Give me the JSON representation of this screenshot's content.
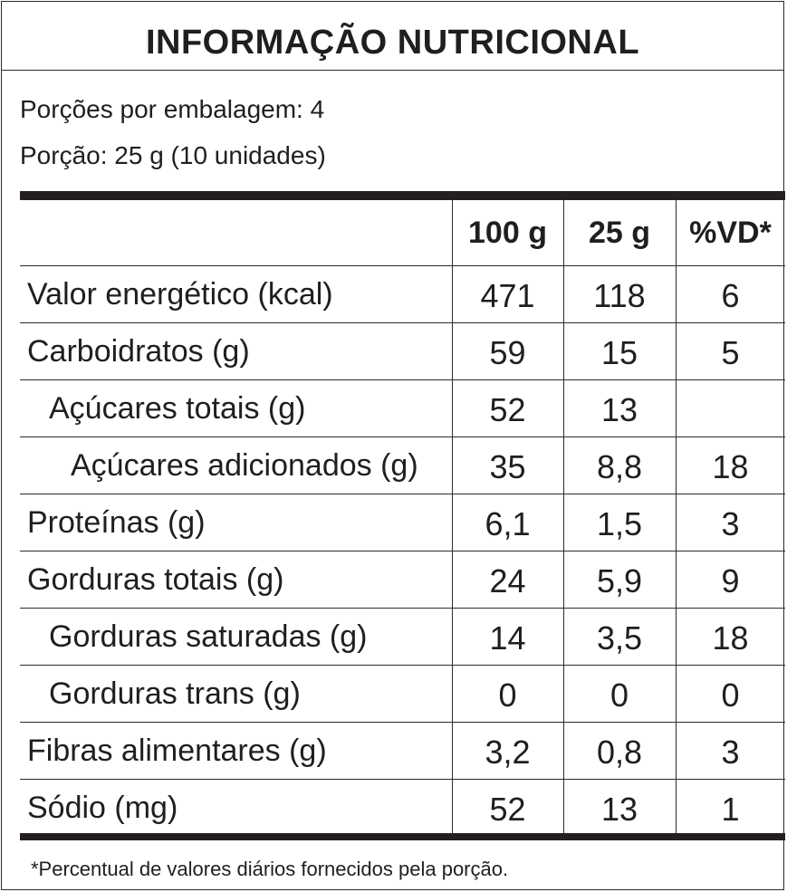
{
  "title": "INFORMAÇÃO NUTRICIONAL",
  "servings_per_package": "Porções por embalagem: 4",
  "serving_size": "Porção: 25 g (10 unidades)",
  "columns": [
    "100 g",
    "25 g",
    "%VD*"
  ],
  "rows": [
    {
      "label": "Valor energético (kcal)",
      "indent": 0,
      "v100": "471",
      "vportion": "118",
      "vd": "6"
    },
    {
      "label": "Carboidratos (g)",
      "indent": 0,
      "v100": "59",
      "vportion": "15",
      "vd": "5"
    },
    {
      "label": "Açúcares totais (g)",
      "indent": 1,
      "v100": "52",
      "vportion": "13",
      "vd": ""
    },
    {
      "label": "Açúcares adicionados (g)",
      "indent": 2,
      "v100": "35",
      "vportion": "8,8",
      "vd": "18"
    },
    {
      "label": "Proteínas (g)",
      "indent": 0,
      "v100": "6,1",
      "vportion": "1,5",
      "vd": "3"
    },
    {
      "label": "Gorduras totais (g)",
      "indent": 0,
      "v100": "24",
      "vportion": "5,9",
      "vd": "9"
    },
    {
      "label": "Gorduras saturadas (g)",
      "indent": 1,
      "v100": "14",
      "vportion": "3,5",
      "vd": "18"
    },
    {
      "label": "Gorduras trans (g)",
      "indent": 1,
      "v100": "0",
      "vportion": "0",
      "vd": "0"
    },
    {
      "label": "Fibras alimentares (g)",
      "indent": 0,
      "v100": "3,2",
      "vportion": "0,8",
      "vd": "3"
    },
    {
      "label": "Sódio (mg)",
      "indent": 0,
      "v100": "52",
      "vportion": "13",
      "vd": "1"
    }
  ],
  "footnote": "*Percentual de valores diários fornecidos pela porção."
}
